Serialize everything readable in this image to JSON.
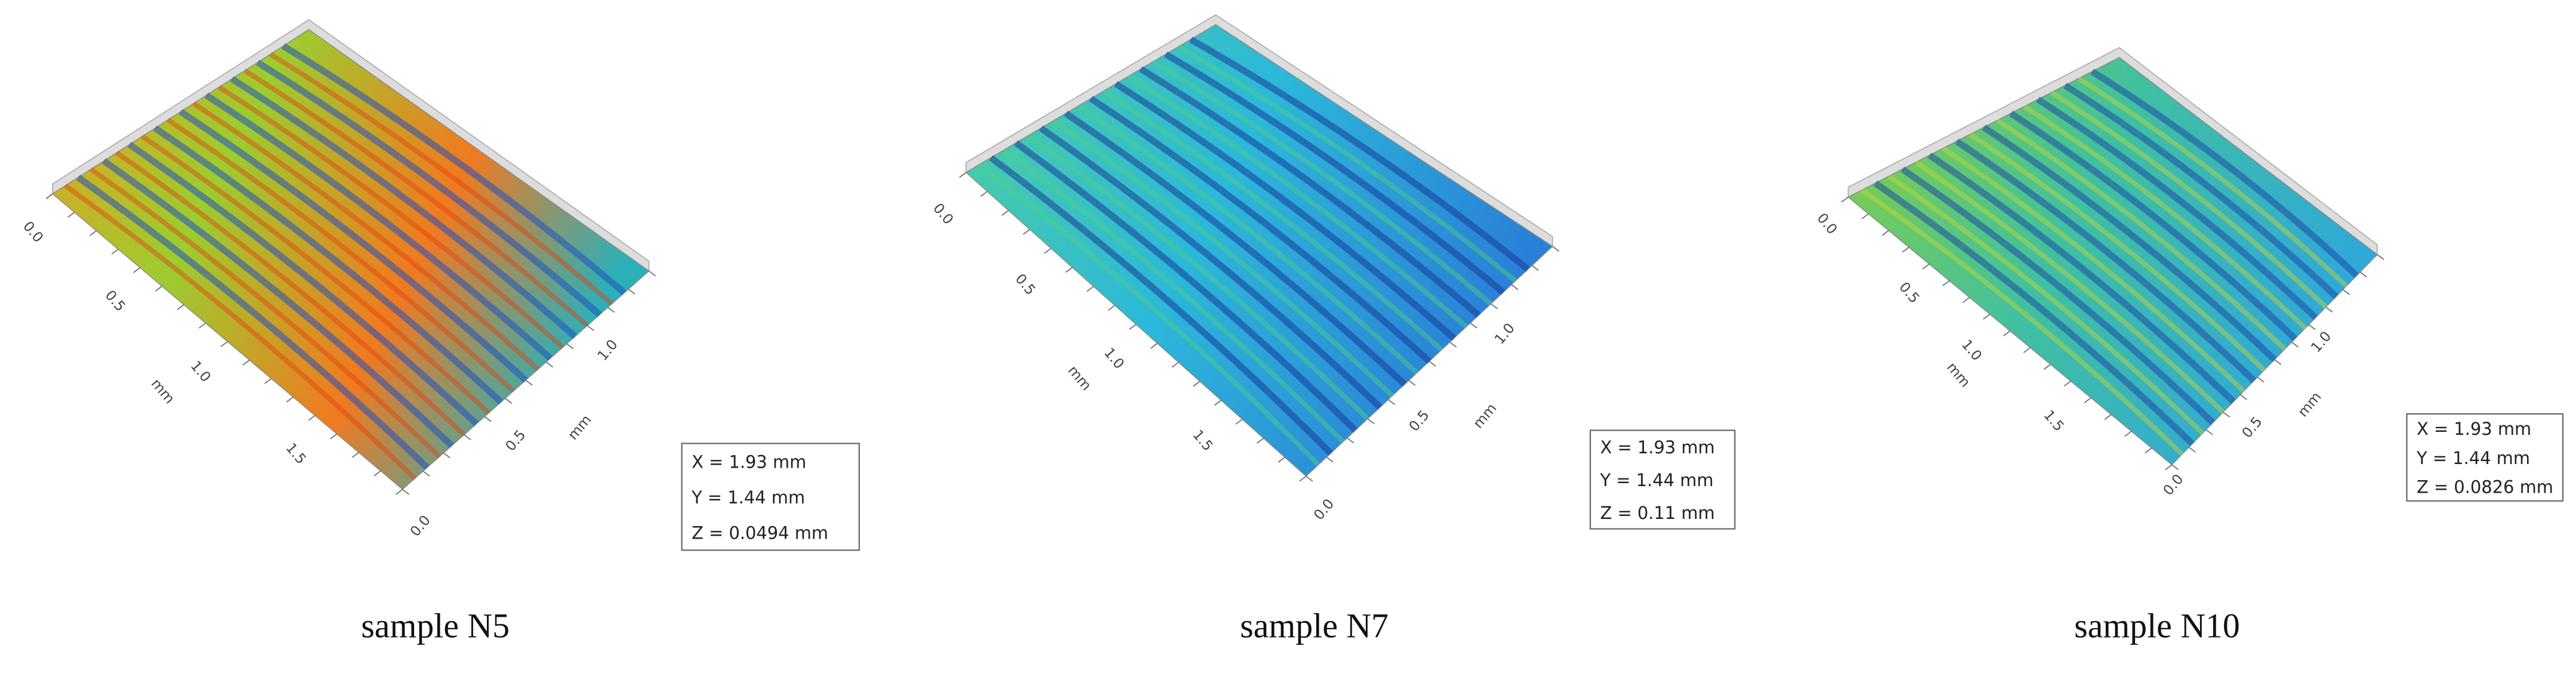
{
  "panels": [
    {
      "axis_a": {
        "ticks": [
          "0.0",
          "0.5",
          "1.0",
          "1.5"
        ],
        "label": "mm"
      },
      "axis_b": {
        "ticks": [
          "0.0",
          "0.5",
          "1.0"
        ],
        "label": "mm"
      },
      "info": [
        "X = 1.93 mm",
        "Y = 1.44 mm",
        "Z = 0.0494 mm"
      ],
      "caption": "sample N5"
    },
    {
      "axis_a": {
        "ticks": [
          "0.0",
          "0.5",
          "1.0",
          "1.5"
        ],
        "label": "mm"
      },
      "axis_b": {
        "ticks": [
          "0.0",
          "0.5",
          "1.0"
        ],
        "label": "mm"
      },
      "info": [
        "X = 1.93 mm",
        "Y = 1.44 mm",
        "Z = 0.11 mm"
      ],
      "caption": "sample N7"
    },
    {
      "axis_a": {
        "ticks": [
          "0.0",
          "0.5",
          "1.0",
          "1.5"
        ],
        "label": "mm"
      },
      "axis_b": {
        "ticks": [
          "0.0",
          "0.5",
          "1.0"
        ],
        "label": "mm"
      },
      "info": [
        "X = 1.93 mm",
        "Y = 1.44 mm",
        "Z = 0.0826 mm"
      ],
      "caption": "sample N10"
    }
  ]
}
